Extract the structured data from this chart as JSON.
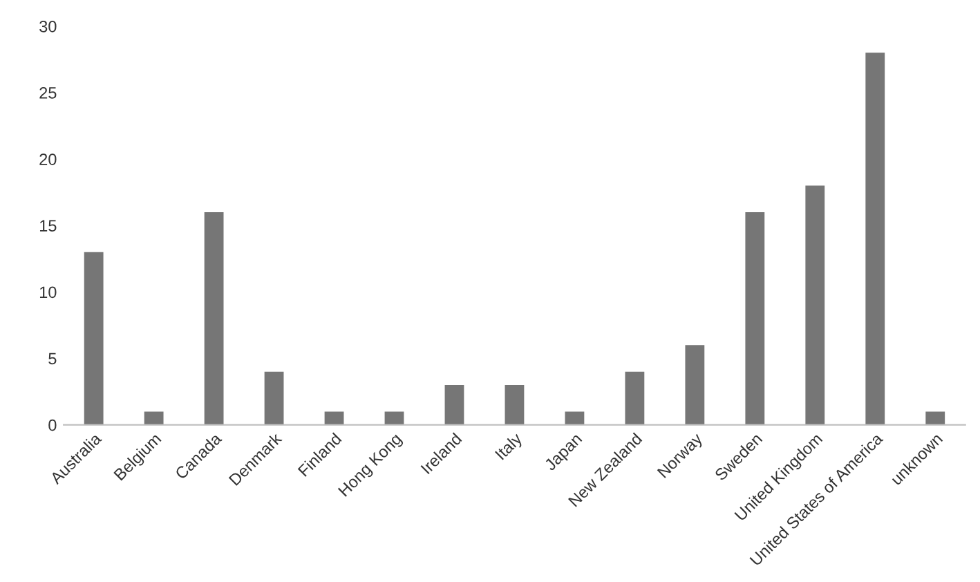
{
  "chart_data": {
    "type": "bar",
    "categories": [
      "Australia",
      "Belgium",
      "Canada",
      "Denmark",
      "Finland",
      "Hong Kong",
      "Ireland",
      "Italy",
      "Japan",
      "New Zealand",
      "Norway",
      "Sweden",
      "United Kingdom",
      "United States of America",
      "unknown"
    ],
    "values": [
      13,
      1,
      16,
      4,
      1,
      1,
      3,
      3,
      1,
      4,
      6,
      16,
      18,
      28,
      1
    ],
    "color": "#767676",
    "ylim": [
      0,
      30
    ],
    "yticks": [
      0,
      5,
      10,
      15,
      20,
      25,
      30
    ],
    "grid": false,
    "legend": false
  }
}
